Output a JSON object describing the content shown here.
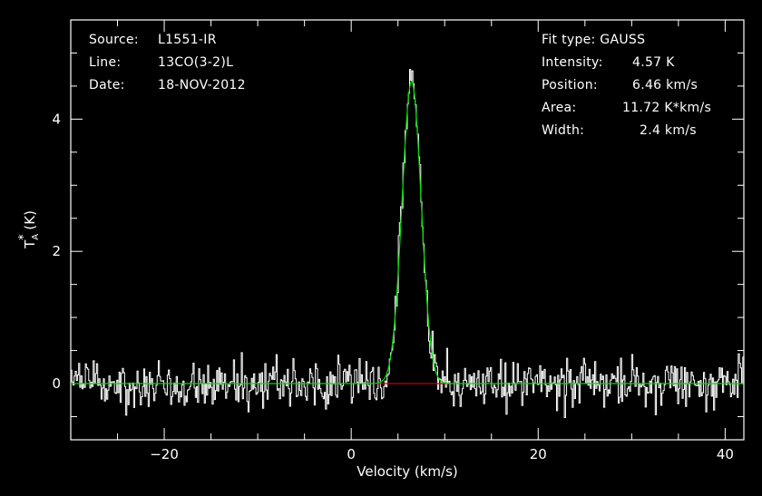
{
  "info_left": {
    "source_label": "Source:",
    "source_value": "L1551-IR",
    "line_label": "Line:",
    "line_value": "13CO(3-2)L",
    "date_label": "Date:",
    "date_value": "18-NOV-2012"
  },
  "info_right": {
    "fit_type": "Fit type: GAUSS",
    "intensity_label": "Intensity:",
    "intensity_value": "4.57 K",
    "position_label": "Position:",
    "position_value": "6.46 km/s",
    "area_label": "Area:",
    "area_value": "11.72 K*km/s",
    "width_label": "Width:",
    "width_value": "2.4 km/s"
  },
  "chart_data": {
    "type": "line",
    "xlabel": "Velocity (km/s)",
    "ylabel": "T_A^* (K)",
    "xlim": [
      -30,
      42
    ],
    "ylim": [
      -0.85,
      5.5
    ],
    "x_ticks": [
      -20,
      0,
      20,
      40
    ],
    "x_tick_labels": [
      "−20",
      "0",
      "20",
      "40"
    ],
    "y_ticks": [
      0,
      2,
      4
    ],
    "y_tick_labels": [
      "0",
      "2",
      "4"
    ],
    "grid": false,
    "series": [
      {
        "kind": "spectrum",
        "color": "#ffffff",
        "x_start": -30,
        "x_step": 0.12,
        "noise_rms": 0.17,
        "peak_center": 6.46,
        "peak_amplitude": 4.57,
        "peak_fwhm": 2.4,
        "peak_max": 5.15
      },
      {
        "kind": "gaussian_fit",
        "color": "#00dd00",
        "amplitude": 4.57,
        "center": 6.46,
        "fwhm": 2.4
      },
      {
        "kind": "baseline_window",
        "color": "#cc0000",
        "x_range": [
          2.7,
          10.2
        ],
        "y": 0
      }
    ]
  },
  "colors": {
    "background": "#000000",
    "axes": "#ffffff",
    "fit": "#00dd00",
    "baseline": "#cc0000"
  }
}
